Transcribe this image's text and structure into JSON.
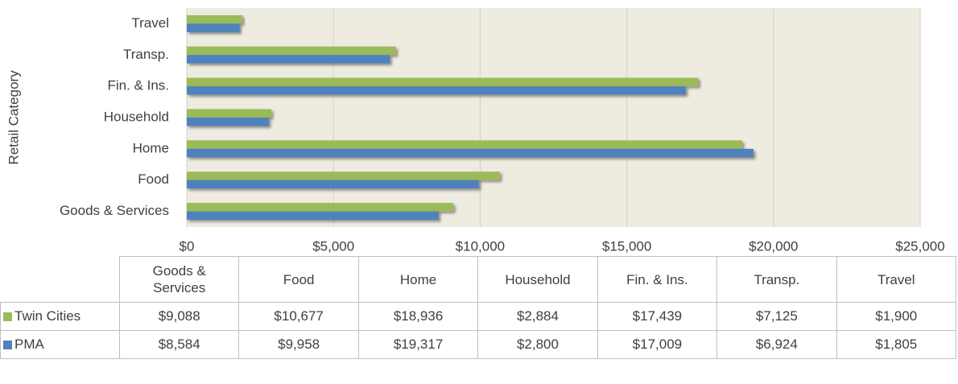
{
  "chart_data": {
    "type": "bar",
    "orientation": "horizontal",
    "y_label": "Retail Category",
    "categories": [
      "Goods & Services",
      "Food",
      "Home",
      "Household",
      "Fin. & Ins.",
      "Transp.",
      "Travel"
    ],
    "series": [
      {
        "name": "Twin Cities",
        "color": "#9bbb59",
        "values": [
          9088,
          10677,
          18936,
          2884,
          17439,
          7125,
          1900
        ],
        "value_labels": [
          "$9,088",
          "$10,677",
          "$18,936",
          "$2,884",
          "$17,439",
          "$7,125",
          "$1,900"
        ]
      },
      {
        "name": "PMA",
        "color": "#4f81bd",
        "values": [
          8584,
          9958,
          19317,
          2800,
          17009,
          6924,
          1805
        ],
        "value_labels": [
          "$8,584",
          "$9,958",
          "$19,317",
          "$2,800",
          "$17,009",
          "$6,924",
          "$1,805"
        ]
      }
    ],
    "xlim": [
      0,
      25000
    ],
    "xticks": [
      {
        "value": 0,
        "label": "$0"
      },
      {
        "value": 5000,
        "label": "$5,000"
      },
      {
        "value": 10000,
        "label": "$10,000"
      },
      {
        "value": 15000,
        "label": "$15,000"
      },
      {
        "value": 20000,
        "label": "$20,000"
      },
      {
        "value": 25000,
        "label": "$25,000"
      }
    ],
    "grid": true
  }
}
